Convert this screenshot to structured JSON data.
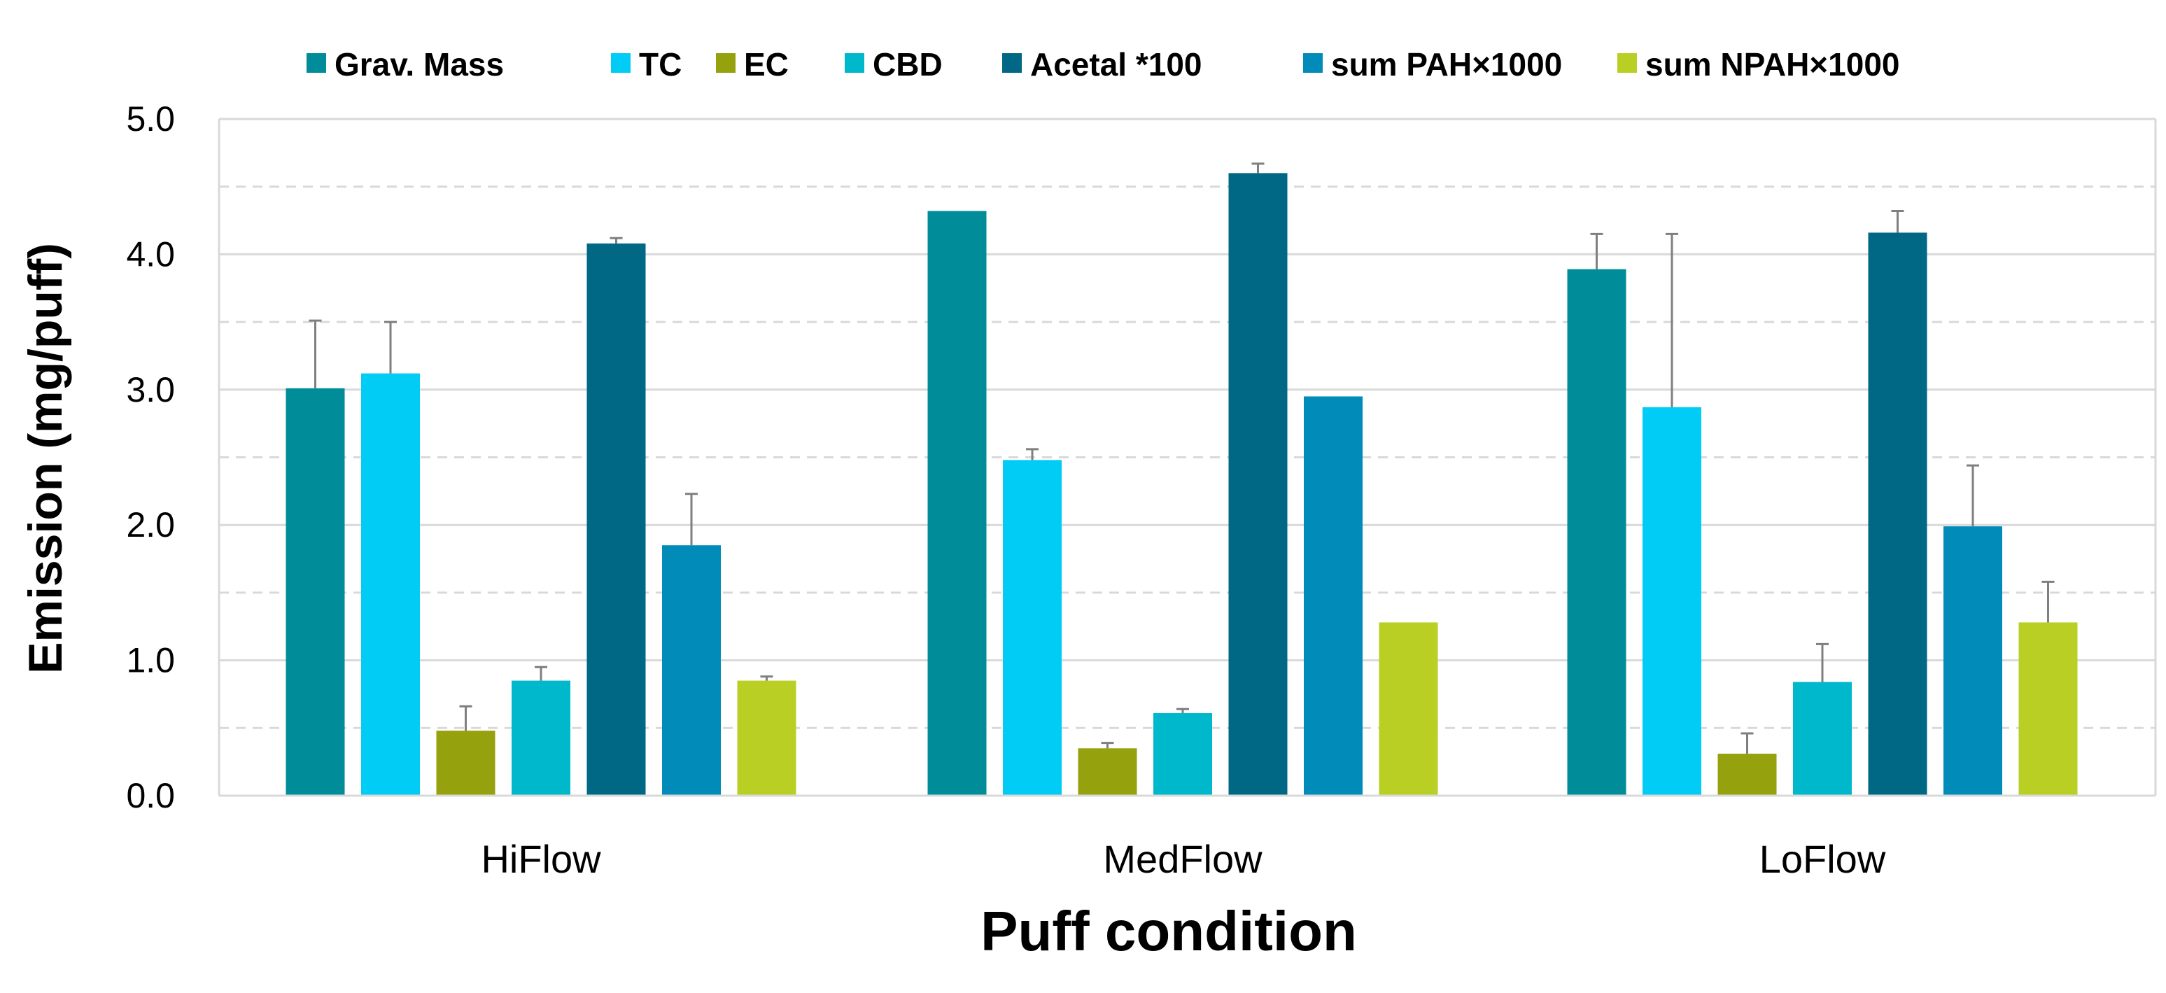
{
  "chart_data": {
    "type": "bar",
    "title": "",
    "xlabel": "Puff condition",
    "ylabel": "Emission (mg/puff)",
    "ylim": [
      0,
      5
    ],
    "ytick_step": 1,
    "ytick_labels": [
      "0.0",
      "1.0",
      "2.0",
      "3.0",
      "4.0",
      "5.0"
    ],
    "minor_grid_step": 0.5,
    "grid": true,
    "legend_position": "top",
    "categories": [
      "HiFlow",
      "MedFlow",
      "LoFlow"
    ],
    "series": [
      {
        "name": "Grav. Mass",
        "color": "#008C99",
        "values": [
          3.01,
          4.32,
          3.89
        ],
        "errors": [
          0.5,
          null,
          0.26
        ]
      },
      {
        "name": "TC",
        "color": "#00CCF5",
        "values": [
          3.12,
          2.48,
          2.87
        ],
        "errors": [
          0.38,
          0.08,
          1.28
        ]
      },
      {
        "name": "EC",
        "color": "#95A10D",
        "values": [
          0.48,
          0.35,
          0.31
        ],
        "errors": [
          0.18,
          0.04,
          0.15
        ]
      },
      {
        "name": "CBD",
        "color": "#00B8CC",
        "values": [
          0.85,
          0.61,
          0.84
        ],
        "errors": [
          0.1,
          0.03,
          0.28
        ]
      },
      {
        "name": "Acetal *100",
        "color": "#006785",
        "values": [
          4.08,
          4.6,
          4.16
        ],
        "errors": [
          0.04,
          0.07,
          0.16
        ]
      },
      {
        "name": "sum PAH×1000",
        "color": "#008BB9",
        "values": [
          1.85,
          2.95,
          1.99
        ],
        "errors": [
          0.38,
          null,
          0.45
        ]
      },
      {
        "name": "sum NPAH×1000",
        "color": "#BACF23",
        "values": [
          0.85,
          1.28,
          1.28
        ],
        "errors": [
          0.03,
          null,
          0.3
        ]
      }
    ]
  },
  "colors": {
    "axis": "#D9D9D9",
    "grid": "#D9D9D9",
    "error_bar": "#7F7F7F",
    "text": "#000000"
  }
}
